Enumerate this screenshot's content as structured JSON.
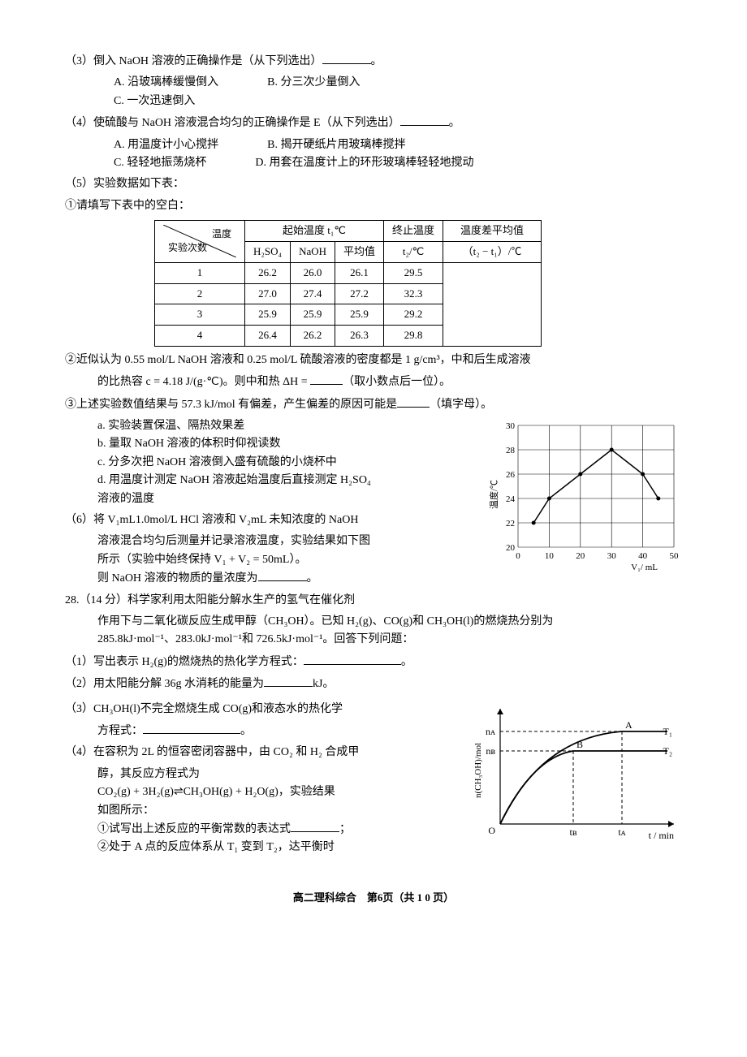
{
  "q3": {
    "stem": "（3）倒入 NaOH 溶液的正确操作是（从下列选出）",
    "optA": "A. 沿玻璃棒缓慢倒入",
    "optB": "B. 分三次少量倒入",
    "optC": "C. 一次迅速倒入"
  },
  "q4": {
    "stem": "（4）使硫酸与 NaOH 溶液混合均匀的正确操作是 E（从下列选出）",
    "optA": "A. 用温度计小心搅拌",
    "optB": "B. 揭开硬纸片用玻璃棒搅拌",
    "optC": "C. 轻轻地振荡烧杯",
    "optD": "D. 用套在温度计上的环形玻璃棒轻轻地搅动"
  },
  "q5": {
    "stem": "（5）实验数据如下表：",
    "sub1": "①请填写下表中的空白："
  },
  "table": {
    "diag_top": "温度",
    "diag_bot": "实验次数",
    "col_t1_header": "起始温度 t₁℃",
    "col_h2so4": "H₂SO₄",
    "col_naoh": "NaOH",
    "col_avg": "平均值",
    "col_t2": "终止温度",
    "col_t2_sub": "t₂/℃",
    "col_diff": "温度差平均值",
    "col_diff_sub": "（t₂ − t₁）/℃",
    "rows": [
      {
        "n": "1",
        "h2so4": "26.2",
        "naoh": "26.0",
        "avg": "26.1",
        "t2": "29.5"
      },
      {
        "n": "2",
        "h2so4": "27.0",
        "naoh": "27.4",
        "avg": "27.2",
        "t2": "32.3"
      },
      {
        "n": "3",
        "h2so4": "25.9",
        "naoh": "25.9",
        "avg": "25.9",
        "t2": "29.2"
      },
      {
        "n": "4",
        "h2so4": "26.4",
        "naoh": "26.2",
        "avg": "26.3",
        "t2": "29.8"
      }
    ]
  },
  "q5sub2a": "②近似认为 0.55 mol/L NaOH 溶液和 0.25 mol/L 硫酸溶液的密度都是 1 g/cm³，中和后生成溶液",
  "q5sub2b": "的比热容 c = 4.18 J/(g·℃)。则中和热 ΔH = ",
  "q5sub2c": "（取小数点后一位）。",
  "q5sub3": "③上述实验数值结果与 57.3 kJ/mol 有偏差，产生偏差的原因可能是",
  "q5sub3tail": "（填字母）。",
  "q5sub3a": "a. 实验装置保温、隔热效果差",
  "q5sub3b": "b. 量取 NaOH 溶液的体积时仰视读数",
  "q5sub3c": "c. 分多次把 NaOH 溶液倒入盛有硫酸的小烧杯中",
  "q5sub3d": "d. 用温度计测定 NaOH 溶液起始温度后直接测定 H₂SO₄",
  "q5sub3d2": "溶液的温度",
  "q6a": "（6）将 V₁mL1.0mol/L HCl 溶液和 V₂mL 未知浓度的 NaOH",
  "q6b": "溶液混合均匀后测量并记录溶液温度，实验结果如下图",
  "q6c": "所示（实验中始终保持 V₁ + V₂ = 50mL）。",
  "q6d": "则 NaOH 溶液的物质的量浓度为",
  "q28": {
    "stem": "28.（14 分）科学家利用太阳能分解水生产的氢气在催化剂",
    "line2": "作用下与二氧化碳反应生成甲醇（CH₃OH）。已知 H₂(g)、CO(g)和 CH₃OH(l)的燃烧热分别为",
    "line3": "285.8kJ·mol⁻¹、283.0kJ·mol⁻¹和 726.5kJ·mol⁻¹。回答下列问题：",
    "p1": "（1）写出表示 H₂(g)的燃烧热的热化学方程式：",
    "p2": "（2）用太阳能分解 36g 水消耗的能量为",
    "p2tail": "kJ。",
    "p3a": "（3）CH₃OH(l)不完全燃烧生成 CO(g)和液态水的热化学",
    "p3b": "方程式：",
    "p4a": "（4）在容积为 2L 的恒容密闭容器中，由 CO₂ 和 H₂ 合成甲",
    "p4b": "醇，其反应方程式为",
    "p4c": "CO₂(g) + 3H₂(g)⇌CH₃OH(g) + H₂O(g)，实验结果",
    "p4d": "如图所示：",
    "p4e": "①试写出上述反应的平衡常数的表达式",
    "p4f": "②处于 A 点的反应体系从 T₁ 变到 T₂，达平衡时"
  },
  "footer": "高二理科综合　第6页（共 1 0 页）",
  "chart1": {
    "ylabel": "温度/℃",
    "xlabel": "V₁/ mL",
    "ymin": 20,
    "ymax": 30,
    "ystep": 2,
    "xmin": 0,
    "xmax": 50,
    "xstep": 10,
    "yticks": [
      "20",
      "22",
      "24",
      "26",
      "28",
      "30"
    ],
    "xticks": [
      "0",
      "10",
      "20",
      "30",
      "40",
      "50"
    ],
    "points": [
      [
        5,
        22
      ],
      [
        10,
        24
      ],
      [
        20,
        26
      ],
      [
        30,
        28
      ],
      [
        40,
        26
      ],
      [
        45,
        24
      ]
    ],
    "grid_color": "#000",
    "line_color": "#000",
    "bg": "#fff"
  },
  "chart2": {
    "ylabel": "n(CH₃OH)/mol",
    "xlabel": "t / min",
    "labels": {
      "A": "A",
      "B": "B",
      "T1": "T₁",
      "T2": "T₂",
      "nA": "nᴀ",
      "nB": "nʙ",
      "tA": "tᴀ",
      "tB": "tʙ",
      "O": "O"
    },
    "curve_color": "#000",
    "axis_color": "#000",
    "dash": "4,3"
  }
}
